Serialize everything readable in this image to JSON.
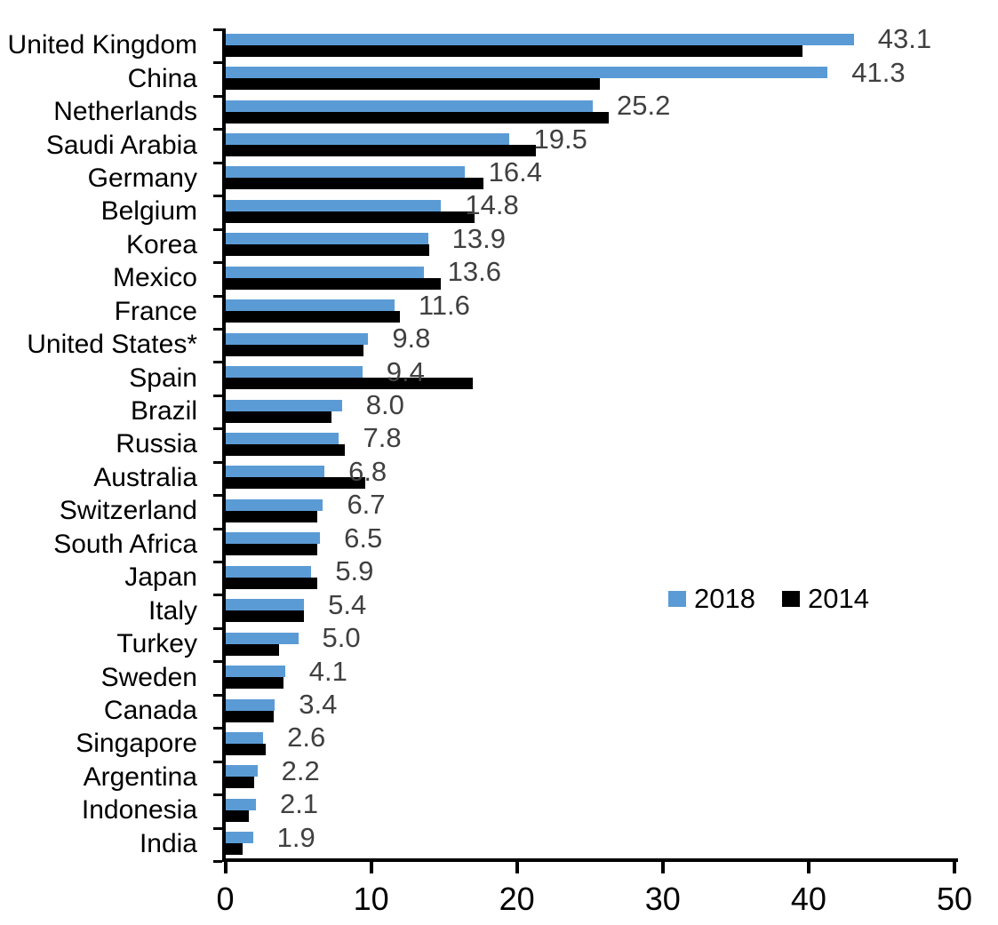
{
  "chart_data": {
    "type": "bar",
    "orientation": "horizontal",
    "title": "",
    "xlabel": "",
    "ylabel": "",
    "xlim": [
      0,
      50
    ],
    "xticks": [
      0,
      10,
      20,
      30,
      40,
      50
    ],
    "grid": false,
    "axis_color": "#000000",
    "value_label_color": "#404040",
    "legend_position": "center-right",
    "categories": [
      "United Kingdom",
      "China",
      "Netherlands",
      "Saudi Arabia",
      "Germany",
      "Belgium",
      "Korea",
      "Mexico",
      "France",
      "United States*",
      "Spain",
      "Brazil",
      "Russia",
      "Australia",
      "Switzerland",
      "South Africa",
      "Japan",
      "Italy",
      "Turkey",
      "Sweden",
      "Canada",
      "Singapore",
      "Argentina",
      "Indonesia",
      "India"
    ],
    "series": [
      {
        "name": "2018",
        "color": "#5B9BD5",
        "values": [
          43.1,
          41.3,
          25.2,
          19.5,
          16.4,
          14.8,
          13.9,
          13.6,
          11.6,
          9.8,
          9.4,
          8.0,
          7.8,
          6.8,
          6.7,
          6.5,
          5.9,
          5.4,
          5.0,
          4.1,
          3.4,
          2.6,
          2.2,
          2.1,
          1.9
        ]
      },
      {
        "name": "2014",
        "color": "#000000",
        "values": [
          39.6,
          25.7,
          26.3,
          21.3,
          17.7,
          17.1,
          14.0,
          14.8,
          12.0,
          9.5,
          17.0,
          7.3,
          8.2,
          9.6,
          6.3,
          6.3,
          6.3,
          5.4,
          3.7,
          4.0,
          3.3,
          2.8,
          2.0,
          1.6,
          1.2
        ]
      }
    ],
    "value_labels_series": "2018",
    "value_labels": [
      "43.1",
      "41.3",
      "25.2",
      "19.5",
      "16.4",
      "14.8",
      "13.9",
      "13.6",
      "11.6",
      "9.8",
      "9.4",
      "8.0",
      "7.8",
      "6.8",
      "6.7",
      "6.5",
      "5.9",
      "5.4",
      "5.0",
      "4.1",
      "3.4",
      "2.6",
      "2.2",
      "2.1",
      "1.9"
    ]
  }
}
